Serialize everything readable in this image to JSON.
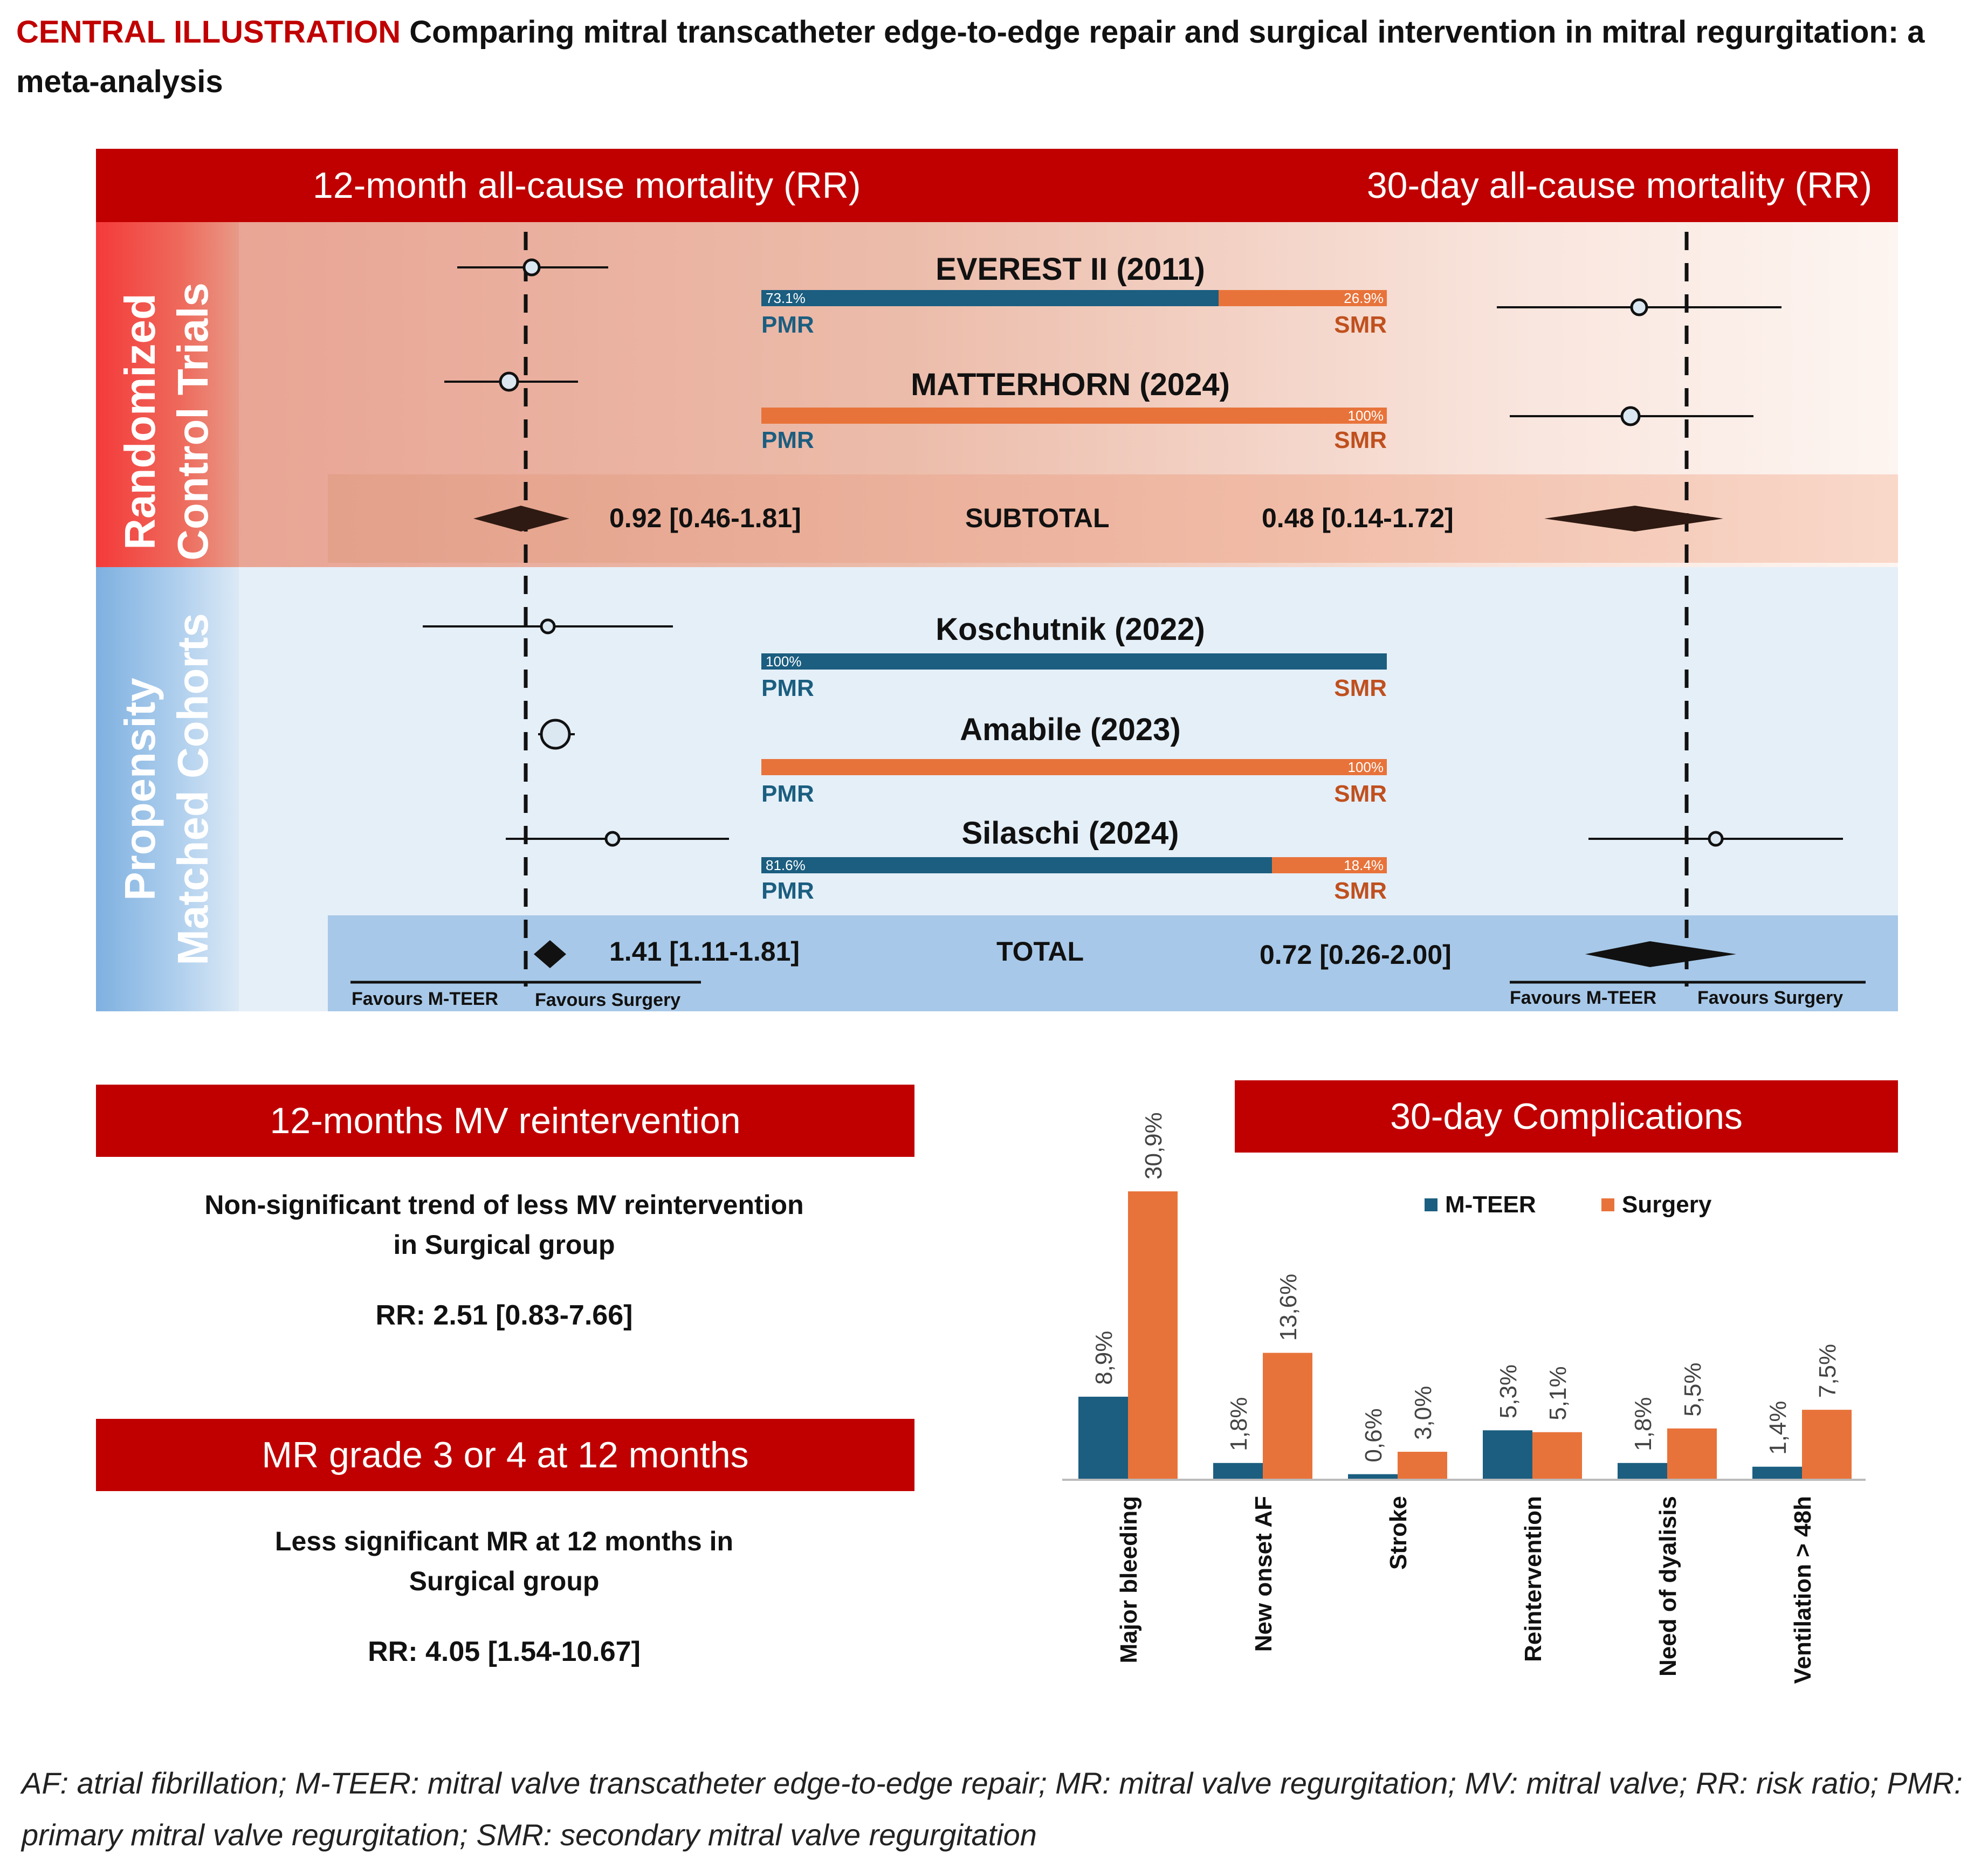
{
  "header": {
    "lead": "CENTRAL ILLUSTRATION",
    "title": "Comparing mitral transcatheter edge-to-edge repair and surgical intervention in mitral regurgitation: a meta-analysis"
  },
  "forest": {
    "left_header": "12-month all-cause mortality (RR)",
    "right_header": "30-day all-cause mortality (RR)",
    "rct_label": "Randomized\nControl Trials",
    "pmc_label": "Propensity\nMatched Cohorts",
    "pmr_label": "PMR",
    "smr_label": "SMR",
    "studies": [
      {
        "name": "EVEREST II (2011)",
        "pmr_pct": "73.1%",
        "smr_pct": "26.9%",
        "pmr_frac": 0.731
      },
      {
        "name": "MATTERHORN (2024)",
        "pmr_pct": "",
        "smr_pct": "100%",
        "pmr_frac": 0.0
      },
      {
        "name": "Koschutnik (2022)",
        "pmr_pct": "100%",
        "smr_pct": "",
        "pmr_frac": 1.0
      },
      {
        "name": "Amabile (2023)",
        "pmr_pct": "",
        "smr_pct": "100%",
        "pmr_frac": 0.0
      },
      {
        "name": "Silaschi (2024)",
        "pmr_pct": "81.6%",
        "smr_pct": "18.4%",
        "pmr_frac": 0.816
      }
    ],
    "subtotal": {
      "label": "SUBTOTAL",
      "left_ci": "0.92 [0.46-1.81]",
      "right_ci": "0.48 [0.14-1.72]"
    },
    "total": {
      "label": "TOTAL",
      "left_ci": "1.41 [1.11-1.81]",
      "right_ci": "0.72 [0.26-2.00]"
    },
    "favours_mteer": "Favours M-TEER",
    "favours_surgery": "Favours Surgery",
    "colors": {
      "pmr": "#1b5e80",
      "smr": "#e8733a",
      "red": "#c00000"
    }
  },
  "reintervention": {
    "title": "12-months MV reintervention",
    "description": "Non-significant trend of less MV reintervention in Surgical group",
    "rr": "RR: 2.51 [0.83-7.66]"
  },
  "mr_grade": {
    "title": "MR grade 3 or 4 at 12 months",
    "description": "Less significant MR at 12 months in Surgical group",
    "rr": "RR: 4.05 [1.54-10.67]"
  },
  "chart_data": {
    "type": "bar",
    "title": "30-day Complications",
    "categories": [
      "Major bleeding",
      "New onset AF",
      "Stroke",
      "Reintervention",
      "Need of dyalisis",
      "Ventilation > 48h"
    ],
    "series": [
      {
        "name": "M-TEER",
        "values": [
          8.9,
          1.8,
          0.6,
          5.3,
          1.8,
          1.4
        ],
        "labels": [
          "8,9%",
          "1,8%",
          "0,6%",
          "5,3%",
          "1,8%",
          "1,4%"
        ],
        "color": "#1b5e80"
      },
      {
        "name": "Surgery",
        "values": [
          30.9,
          13.6,
          3.0,
          5.1,
          5.5,
          7.5
        ],
        "labels": [
          "30,9%",
          "13,6%",
          "3,0%",
          "5,1%",
          "5,5%",
          "7,5%"
        ],
        "color": "#e8733a"
      }
    ],
    "ylim": [
      0,
      30.9
    ],
    "legend": "top"
  },
  "footnote": "AF: atrial fibrillation; M-TEER: mitral valve transcatheter edge-to-edge repair; MR: mitral valve regurgitation; MV: mitral valve; RR: risk ratio; PMR: primary mitral valve regurgitation; SMR: secondary mitral valve regurgitation"
}
